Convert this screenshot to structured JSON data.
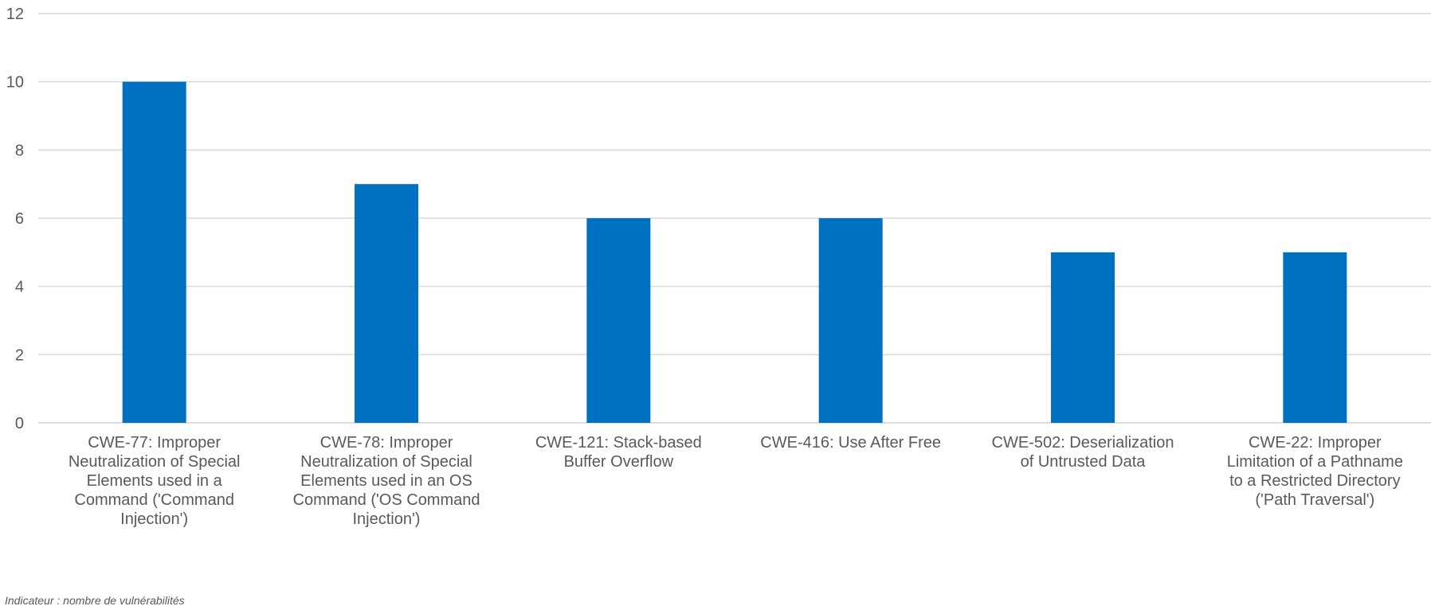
{
  "chart_data": {
    "type": "bar",
    "categories": [
      "CWE-77: Improper Neutralization of Special Elements used in a Command ('Command Injection')",
      "CWE-78: Improper Neutralization of Special Elements used in an OS Command ('OS Command Injection')",
      "CWE-121: Stack-based Buffer Overflow",
      "CWE-416: Use After Free",
      "CWE-502: Deserialization of Untrusted Data",
      "CWE-22: Improper Limitation of a Pathname to a Restricted Directory ('Path Traversal')"
    ],
    "category_lines": [
      [
        "CWE-77: Improper",
        "Neutralization of Special",
        "Elements used in a",
        "Command ('Command",
        "Injection')"
      ],
      [
        "CWE-78: Improper",
        "Neutralization of Special",
        "Elements used in an OS",
        "Command ('OS Command",
        "Injection')"
      ],
      [
        "CWE-121: Stack-based",
        "Buffer Overflow"
      ],
      [
        "CWE-416: Use After Free"
      ],
      [
        "CWE-502: Deserialization",
        "of Untrusted Data"
      ],
      [
        "CWE-22: Improper",
        "Limitation of a Pathname",
        "to a Restricted Directory",
        "('Path Traversal')"
      ]
    ],
    "values": [
      10,
      7,
      6,
      6,
      5,
      5
    ],
    "ylim": [
      0,
      12
    ],
    "yticks": [
      0,
      2,
      4,
      6,
      8,
      10,
      12
    ],
    "grid": true,
    "title": "",
    "xlabel": "",
    "ylabel": "",
    "bar_color": "#0070C0",
    "grid_color": "#D9D9D9",
    "text_color": "#595959"
  },
  "footnote": "Indicateur : nombre de vulnérabilités"
}
